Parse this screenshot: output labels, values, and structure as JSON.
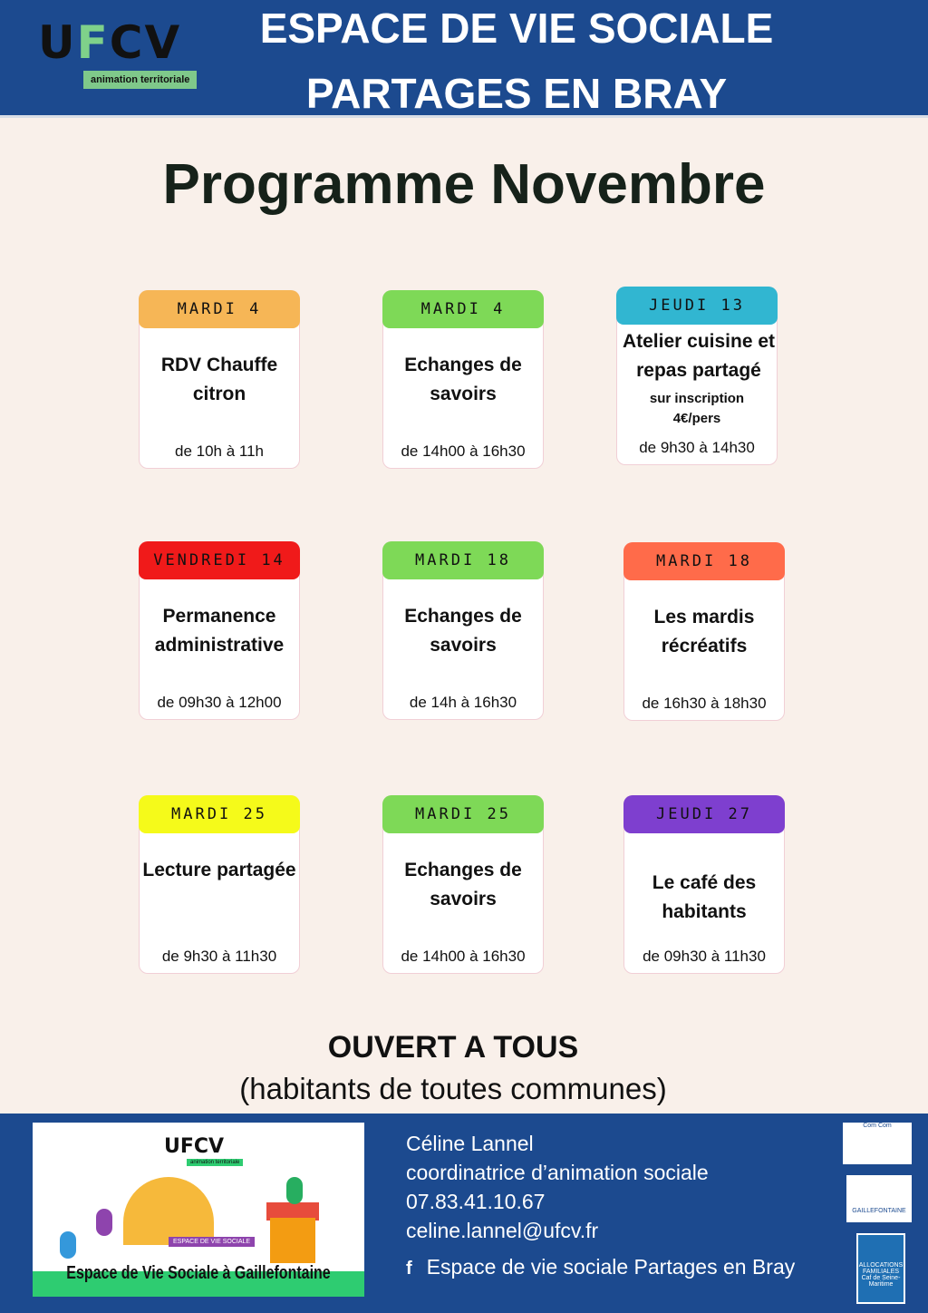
{
  "header": {
    "logo_text": "UFCV",
    "logo_tagline": "animation territoriale",
    "title_line1": "ESPACE DE VIE SOCIALE",
    "title_line2": "PARTAGES EN BRAY",
    "color": "#1c4a8f"
  },
  "page_title": "Programme Novembre",
  "events": [
    {
      "day": "MARDI 4",
      "title": "RDV Chauffe citron",
      "note": "",
      "time": "de 10h à 11h",
      "color": "#f6b656"
    },
    {
      "day": "MARDI 4",
      "title": "Echanges de savoirs",
      "note": "",
      "time": "de 14h00 à 16h30",
      "color": "#7ed957"
    },
    {
      "day": "JEUDI 13",
      "title": "Atelier cuisine et repas partagé",
      "note": "sur inscription 4€/pers",
      "time": "de 9h30 à 14h30",
      "color": "#31b6d1"
    },
    {
      "day": "VENDREDI 14",
      "title": "Permanence administrative",
      "note": "",
      "time": "de 09h30 à 12h00",
      "color": "#f01a1a"
    },
    {
      "day": "MARDI 18",
      "title": "Echanges de savoirs",
      "note": "",
      "time": "de 14h à 16h30",
      "color": "#7ed957"
    },
    {
      "day": "MARDI 18",
      "title": "Les mardis récréatifs",
      "note": "",
      "time": "de 16h30 à 18h30",
      "color": "#ff6b4a"
    },
    {
      "day": "MARDI 25",
      "title": "Lecture partagée",
      "note": "",
      "time": "de 9h30 à 11h30",
      "color": "#f5fa1a"
    },
    {
      "day": "MARDI 25",
      "title": "Echanges de savoirs",
      "note": "",
      "time": "de 14h00 à 16h30",
      "color": "#7ed957"
    },
    {
      "day": "JEUDI 27",
      "title": "Le café des habitants",
      "note": "",
      "time": "de 09h30 à 11h30",
      "color": "#7e3fcf"
    }
  ],
  "open": {
    "title": "OUVERT A TOUS",
    "subtitle": "(habitants de toutes communes)"
  },
  "footer": {
    "image_logo": "UFCV",
    "image_tagline": "animation territoriale",
    "image_sign": "ESPACE DE VIE SOCIALE",
    "image_caption": "Espace de Vie Sociale à Gaillefontaine",
    "contact": [
      "Céline Lannel",
      "coordinatrice d’animation sociale",
      "07.83.41.10.67",
      "celine.lannel@ufcv.fr"
    ],
    "facebook_icon": "facebook-icon",
    "facebook_label": "Espace de vie sociale Partages en Bray",
    "partner_logos": [
      "Com Com",
      "GAILLEFONTAINE",
      "ALLOCATIONS FAMILIALES Caf de Seine-Maritime"
    ]
  }
}
